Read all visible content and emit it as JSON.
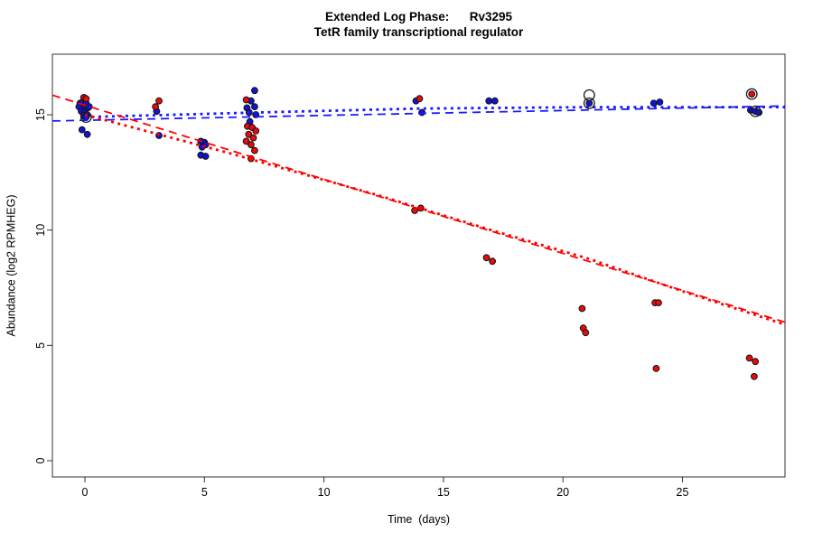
{
  "figure": {
    "title_line1": "Extended Log Phase:      Rv3295",
    "title_line2": "TetR family transcriptional regulator"
  },
  "chart_data": {
    "type": "scatter",
    "title": "Extended Log Phase: Rv3295",
    "subtitle": "TetR family transcriptional regulator",
    "xlabel": "Time  (days)",
    "ylabel": "Abundance  (log2 RPMHEG)",
    "xlim": [
      -1.36,
      29.3
    ],
    "ylim": [
      -0.7,
      17.6
    ],
    "x_ticks": [
      0,
      5,
      10,
      15,
      20,
      25
    ],
    "y_ticks": [
      0,
      5,
      10,
      15
    ],
    "grid": false,
    "legend": "none",
    "colors": {
      "blue_point_fill": "#1313d2",
      "red_point_fill": "#e60c0c",
      "point_stroke": "#111111",
      "blue_line": "#1a1aff",
      "red_line": "#ff0000",
      "circle_marker": "#1a1a1a",
      "axis": "#333333"
    },
    "series": [
      {
        "name": "blue",
        "marker": "filled-circle",
        "points": [
          [
            -0.2,
            15.5
          ],
          [
            -0.1,
            15.55
          ],
          [
            0.05,
            15.5
          ],
          [
            -0.25,
            15.35
          ],
          [
            0,
            15.3
          ],
          [
            0.12,
            15.3
          ],
          [
            0.18,
            15.35
          ],
          [
            -0.15,
            15.15
          ],
          [
            0,
            15.1
          ],
          [
            0.1,
            15.0
          ],
          [
            -0.05,
            14.95
          ],
          [
            0.05,
            14.9
          ],
          [
            -0.12,
            14.35
          ],
          [
            0.1,
            14.15
          ],
          [
            3.0,
            15.15
          ],
          [
            3.1,
            14.1
          ],
          [
            4.85,
            13.85
          ],
          [
            5.0,
            13.8
          ],
          [
            5.05,
            13.7
          ],
          [
            4.9,
            13.6
          ],
          [
            4.85,
            13.25
          ],
          [
            5.05,
            13.2
          ],
          [
            7.1,
            16.05
          ],
          [
            6.95,
            15.6
          ],
          [
            6.78,
            15.3
          ],
          [
            7.1,
            15.35
          ],
          [
            6.87,
            15.1
          ],
          [
            7.15,
            15.0
          ],
          [
            6.9,
            14.7
          ],
          [
            13.85,
            15.6
          ],
          [
            14.1,
            15.1
          ],
          [
            16.9,
            15.6
          ],
          [
            17.15,
            15.6
          ],
          [
            21.1,
            15.5
          ],
          [
            23.8,
            15.5
          ],
          [
            24.05,
            15.55
          ],
          [
            27.85,
            15.2
          ],
          [
            28.05,
            15.15
          ],
          [
            28.2,
            15.1
          ]
        ]
      },
      {
        "name": "red",
        "marker": "filled-circle",
        "points": [
          [
            -0.05,
            15.75
          ],
          [
            0.05,
            15.7
          ],
          [
            2.95,
            15.35
          ],
          [
            3.1,
            15.6
          ],
          [
            6.75,
            15.65
          ],
          [
            6.8,
            14.5
          ],
          [
            7.0,
            14.45
          ],
          [
            7.15,
            14.3
          ],
          [
            6.85,
            14.15
          ],
          [
            7.05,
            14.0
          ],
          [
            6.75,
            13.85
          ],
          [
            6.95,
            13.7
          ],
          [
            7.1,
            13.45
          ],
          [
            6.95,
            13.1
          ],
          [
            14.0,
            15.7
          ],
          [
            13.8,
            10.85
          ],
          [
            14.05,
            10.95
          ],
          [
            16.8,
            8.8
          ],
          [
            17.05,
            8.65
          ],
          [
            20.8,
            6.6
          ],
          [
            20.85,
            5.75
          ],
          [
            20.95,
            5.55
          ],
          [
            23.85,
            6.85
          ],
          [
            24.0,
            6.85
          ],
          [
            23.9,
            4.0
          ],
          [
            27.9,
            15.9
          ],
          [
            27.8,
            4.45
          ],
          [
            28.05,
            4.3
          ],
          [
            28.0,
            3.65
          ]
        ]
      }
    ],
    "circled_points": [
      [
        0.05,
        14.9
      ],
      [
        21.1,
        15.85
      ],
      [
        21.1,
        15.5
      ],
      [
        27.9,
        15.9
      ],
      [
        28.05,
        15.15
      ]
    ],
    "trend_lines": [
      {
        "name": "blue-dashed",
        "color": "#1a1aff",
        "style": "dashed",
        "points": [
          [
            -1.36,
            14.73
          ],
          [
            29.3,
            15.38
          ]
        ]
      },
      {
        "name": "blue-dotted",
        "color": "#1a1aff",
        "style": "dotted",
        "points": [
          [
            0,
            14.9
          ],
          [
            8,
            15.12
          ],
          [
            14,
            15.27
          ],
          [
            21,
            15.33
          ],
          [
            29.3,
            15.33
          ]
        ]
      },
      {
        "name": "red-dashed",
        "color": "#ff0000",
        "style": "dashed",
        "points": [
          [
            -1.36,
            15.85
          ],
          [
            29.3,
            6.0
          ]
        ]
      },
      {
        "name": "red-dotted",
        "color": "#ff0000",
        "style": "dotted",
        "points": [
          [
            0,
            15.0
          ],
          [
            6,
            13.35
          ],
          [
            12.3,
            11.5
          ],
          [
            17,
            10.0
          ],
          [
            21.1,
            8.75
          ],
          [
            25,
            7.35
          ],
          [
            29.3,
            5.9
          ]
        ]
      }
    ]
  }
}
